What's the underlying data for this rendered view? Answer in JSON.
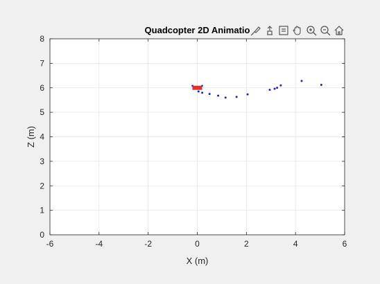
{
  "window": {
    "background": "#f0f0f0"
  },
  "toolbar": {
    "icons": [
      "brush-icon",
      "export-icon",
      "data-tips-icon",
      "pan-icon",
      "zoom-in-icon",
      "zoom-out-icon",
      "home-icon"
    ]
  },
  "chart_data": {
    "type": "scatter",
    "title": "Quadcopter 2D Animatio",
    "xlabel": "X (m)",
    "ylabel": "Z (m)",
    "xlim": [
      -6,
      6
    ],
    "ylim": [
      0,
      8
    ],
    "xticks": [
      -6,
      -4,
      -2,
      0,
      2,
      4,
      6
    ],
    "yticks": [
      0,
      1,
      2,
      3,
      4,
      5,
      6,
      7,
      8
    ],
    "grid": true,
    "series": [
      {
        "marker": "dot",
        "color": "#1f1fd6",
        "points": [
          [
            0.0,
            6.0
          ],
          [
            0.05,
            5.85
          ],
          [
            0.2,
            5.8
          ],
          [
            0.5,
            5.75
          ],
          [
            0.85,
            5.68
          ],
          [
            1.15,
            5.6
          ],
          [
            1.6,
            5.63
          ],
          [
            2.05,
            5.73
          ],
          [
            2.95,
            5.92
          ],
          [
            3.15,
            5.96
          ],
          [
            3.25,
            6.0
          ],
          [
            3.4,
            6.1
          ],
          [
            4.25,
            6.28
          ],
          [
            5.05,
            6.12
          ]
        ]
      }
    ],
    "quadcopter": {
      "x": 0.0,
      "z": 6.0,
      "body_color": "#e0322b",
      "rotor_color": "#1f1fd6"
    }
  }
}
